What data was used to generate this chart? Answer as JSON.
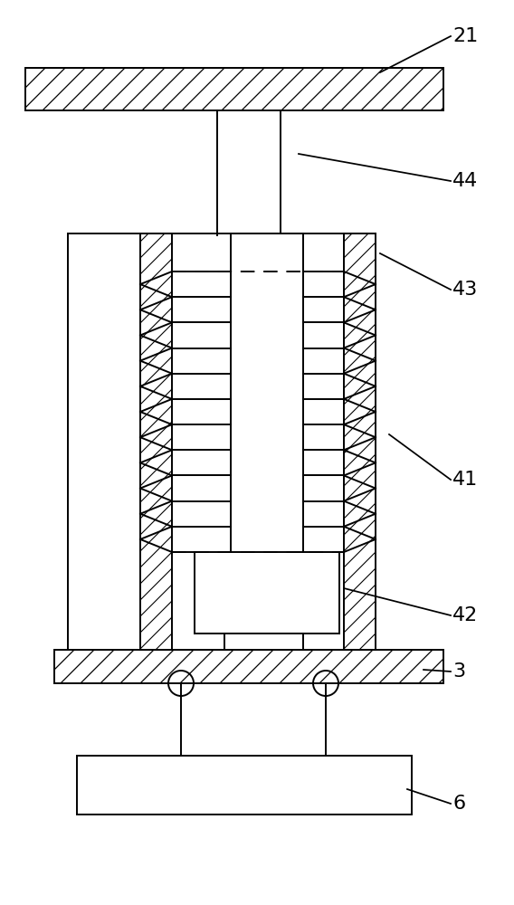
{
  "background": "#ffffff",
  "line_color": "#000000",
  "lw": 1.4,
  "label_fontsize": 16,
  "figsize": [
    5.68,
    10.0
  ],
  "dpi": 100
}
